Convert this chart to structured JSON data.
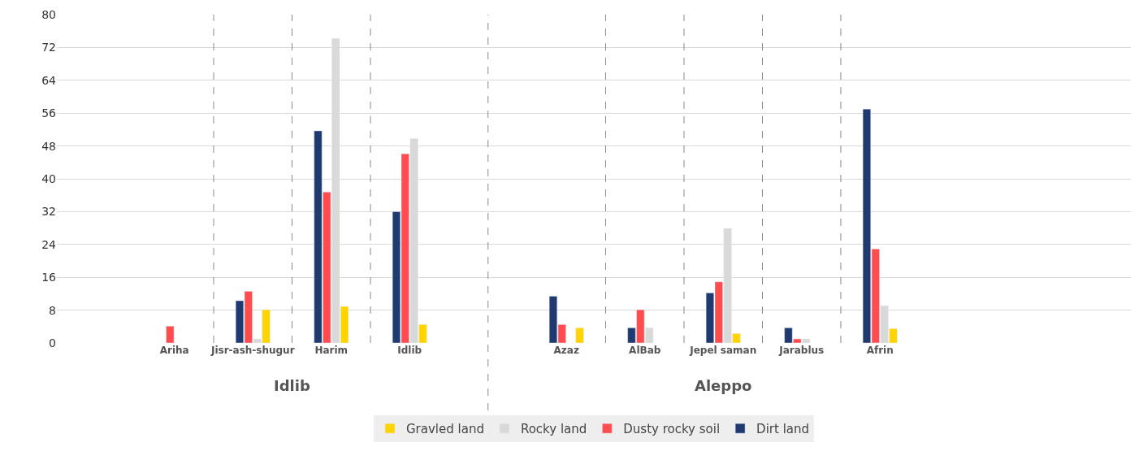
{
  "chart_data": {
    "type": "bar",
    "categories": [
      "Ariha",
      "Jisr-ash-shugur",
      "Harim",
      "Idlib",
      null,
      "Azaz",
      "AlBab",
      "Jepel saman",
      "Jarablus",
      "Afrin"
    ],
    "series": [
      {
        "name": "Dirt land",
        "color": "#1f3a6e",
        "values": [
          null,
          10.3,
          51.7,
          32,
          null,
          11.4,
          3.7,
          12.2,
          3.7,
          57
        ]
      },
      {
        "name": "Dusty rocky soil",
        "color": "#ff4d4f",
        "values": [
          4.1,
          12.6,
          36.8,
          46.1,
          null,
          4.5,
          8.1,
          14.9,
          1,
          22.9
        ]
      },
      {
        "name": "Rocky land",
        "color": "#d9d9d9",
        "values": [
          null,
          1,
          74.2,
          49.8,
          null,
          null,
          3.7,
          27.9,
          1,
          9.1
        ]
      },
      {
        "name": "Gravled land",
        "color": "#ffd400",
        "values": [
          null,
          8.1,
          8.9,
          4.5,
          null,
          3.7,
          null,
          2.3,
          null,
          3.5
        ]
      }
    ],
    "annotations": [
      "Idlib",
      "Aleppo"
    ],
    "ylim": [
      0,
      80
    ],
    "yticks": [
      0,
      8,
      16,
      24,
      32,
      40,
      48,
      56,
      64,
      72,
      80
    ],
    "grid": true,
    "legend": "bottom"
  }
}
